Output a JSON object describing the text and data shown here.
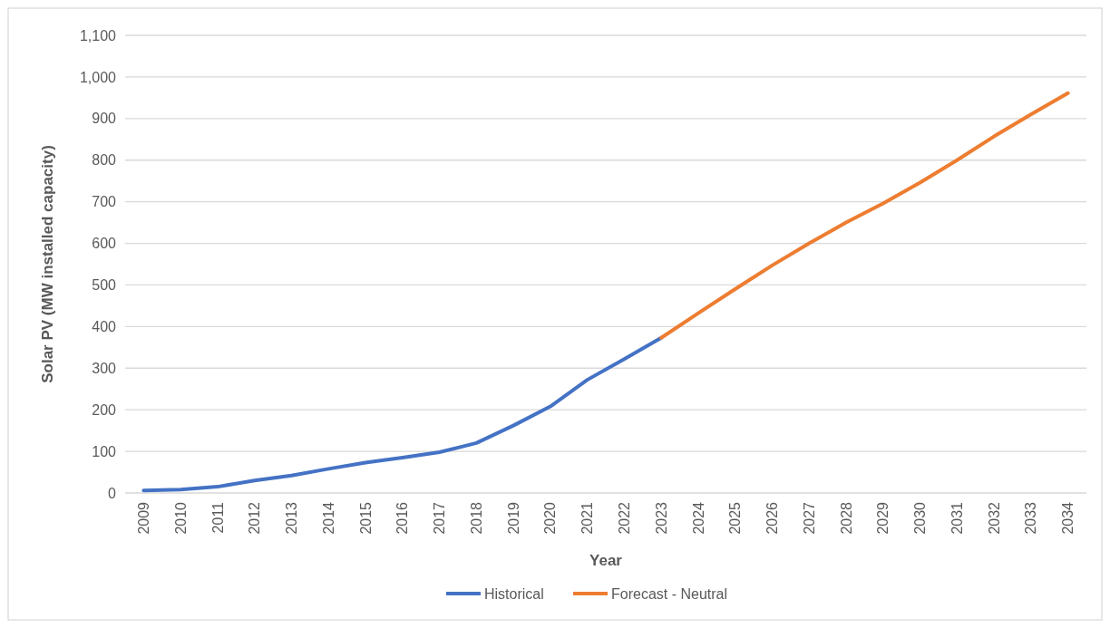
{
  "chart_data": {
    "type": "line",
    "xlabel": "Year",
    "ylabel": "Solar PV (MW installed capacity)",
    "categories": [
      "2009",
      "2010",
      "2011",
      "2012",
      "2013",
      "2014",
      "2015",
      "2016",
      "2017",
      "2018",
      "2019",
      "2020",
      "2021",
      "2022",
      "2023",
      "2024",
      "2025",
      "2026",
      "2027",
      "2028",
      "2029",
      "2030",
      "2031",
      "2032",
      "2033",
      "2034"
    ],
    "series": [
      {
        "name": "Historical",
        "color": "#4472c4",
        "values": [
          6,
          8,
          15,
          30,
          42,
          58,
          73,
          85,
          98,
          120,
          162,
          208,
          272,
          322,
          373,
          null,
          null,
          null,
          null,
          null,
          null,
          null,
          null,
          null,
          null,
          null
        ]
      },
      {
        "name": "Forecast - Neutral",
        "color": "#ed7d31",
        "values": [
          null,
          null,
          null,
          null,
          null,
          null,
          null,
          null,
          null,
          null,
          null,
          null,
          null,
          null,
          373,
          432,
          490,
          547,
          600,
          650,
          696,
          746,
          800,
          857,
          910,
          961
        ]
      }
    ],
    "ylim": [
      0,
      1100
    ],
    "yticks": [
      0,
      100,
      200,
      300,
      400,
      500,
      600,
      700,
      800,
      900,
      {
        "value": 1000,
        "label": "1,000"
      },
      {
        "value": 1100,
        "label": "1,100"
      }
    ],
    "grid": "y",
    "legend": "bottom",
    "marker": "none",
    "line_style": "solid"
  }
}
